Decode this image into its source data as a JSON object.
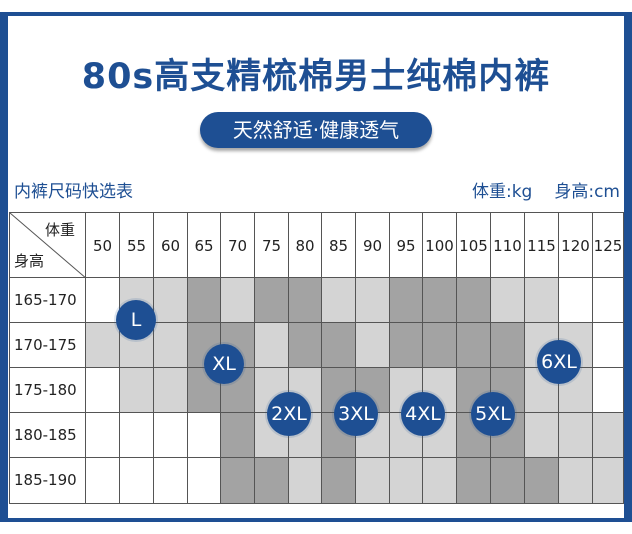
{
  "title": "80s高支精梳棉男士纯棉内裤",
  "subtitle": "天然舒适·健康透气",
  "table_caption": "内裤尺码快选表",
  "unit_weight": "体重:kg",
  "unit_height": "身高:cm",
  "corner": {
    "top": "体重",
    "bottom": "身高"
  },
  "weights": [
    "50",
    "55",
    "60",
    "65",
    "70",
    "75",
    "80",
    "85",
    "90",
    "95",
    "100",
    "105",
    "110",
    "115",
    "120",
    "125"
  ],
  "heights": [
    "165-170",
    "170-175",
    "175-180",
    "180-185",
    "185-190"
  ],
  "sizes": [
    "L",
    "XL",
    "2XL",
    "3XL",
    "4XL",
    "5XL",
    "6XL"
  ],
  "shade_map": [
    [
      "w",
      "l",
      "l",
      "d",
      "l",
      "d",
      "d",
      "l",
      "l",
      "d",
      "d",
      "d",
      "l",
      "l",
      "w",
      "w"
    ],
    [
      "l",
      "l",
      "l",
      "d",
      "d",
      "l",
      "d",
      "d",
      "l",
      "d",
      "d",
      "d",
      "d",
      "l",
      "l",
      "w"
    ],
    [
      "w",
      "l",
      "l",
      "d",
      "d",
      "l",
      "l",
      "d",
      "d",
      "l",
      "l",
      "d",
      "d",
      "l",
      "l",
      "w"
    ],
    [
      "w",
      "w",
      "w",
      "w",
      "d",
      "l",
      "l",
      "d",
      "l",
      "l",
      "l",
      "d",
      "d",
      "l",
      "l",
      "l"
    ],
    [
      "w",
      "w",
      "w",
      "w",
      "d",
      "d",
      "l",
      "d",
      "l",
      "l",
      "l",
      "d",
      "d",
      "d",
      "l",
      "l"
    ]
  ],
  "colors": {
    "brand": "#1e4f93",
    "dark": "#a3a3a3",
    "light": "#d4d4d4",
    "white": "#ffffff"
  }
}
